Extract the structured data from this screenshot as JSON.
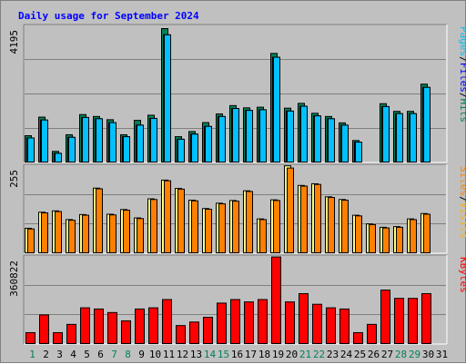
{
  "chart_data": {
    "type": "bar",
    "title": "Daily usage for September 2024",
    "title_color": "#0000ff",
    "x": {
      "labels": [
        "1",
        "2",
        "3",
        "4",
        "5",
        "6",
        "7",
        "8",
        "9",
        "10",
        "11",
        "12",
        "13",
        "14",
        "15",
        "16",
        "17",
        "18",
        "19",
        "20",
        "21",
        "22",
        "23",
        "24",
        "25",
        "26",
        "27",
        "28",
        "29",
        "30",
        "31"
      ],
      "weekend_days": [
        1,
        7,
        8,
        14,
        15,
        21,
        22,
        28,
        29
      ],
      "weekend_label_color": "#00805c",
      "weekday_label_color": "#000000"
    },
    "panels": [
      {
        "id": "hits",
        "ymax_label": "4195",
        "ymax": 4195,
        "right_labels": [
          {
            "text": "Pages",
            "color": "#00c0ff"
          },
          {
            "text": "/",
            "color": "#000000"
          },
          {
            "text": "Files",
            "color": "#0000ff"
          },
          {
            "text": "/",
            "color": "#000000"
          },
          {
            "text": "Hits",
            "color": "#00805c"
          }
        ],
        "series": [
          {
            "name": "Hits",
            "color": "#00805c",
            "values": [
              850,
              1430,
              360,
              880,
              1510,
              1450,
              1350,
              880,
              1330,
              1490,
              4195,
              820,
              980,
              1260,
              1530,
              1790,
              1720,
              1740,
              3420,
              1710,
              1860,
              1550,
              1450,
              1250,
              700,
              0,
              1850,
              1610,
              1610,
              2460,
              0
            ]
          },
          {
            "name": "Files",
            "color": "#0000ff",
            "values": [
              780,
              1340,
              300,
              800,
              1420,
              1380,
              1260,
              820,
              1180,
              1390,
              4000,
              740,
              900,
              1140,
              1450,
              1700,
              1640,
              1660,
              3300,
              1620,
              1770,
              1470,
              1380,
              1180,
              650,
              0,
              1760,
              1540,
              1540,
              2360,
              0
            ]
          },
          {
            "name": "Pages",
            "color": "#00c0ff",
            "values": [
              780,
              1340,
              300,
              800,
              1420,
              1380,
              1260,
              820,
              1180,
              1390,
              4000,
              740,
              900,
              1140,
              1450,
              1700,
              1640,
              1660,
              3300,
              1620,
              1770,
              1470,
              1380,
              1180,
              650,
              0,
              1760,
              1540,
              1540,
              2360,
              0
            ]
          }
        ]
      },
      {
        "id": "visits",
        "ymax_label": "255",
        "ymax": 255,
        "right_labels": [
          {
            "text": "Sites",
            "color": "#ff8000"
          },
          {
            "text": "/",
            "color": "#000000"
          },
          {
            "text": "Visits",
            "color": "#ffb000"
          }
        ],
        "series": [
          {
            "name": "Visits",
            "color": "#ffff80",
            "values": [
              76,
              124,
              128,
              102,
              117,
              196,
              118,
              132,
              107,
              164,
              220,
              195,
              160,
              135,
              151,
              159,
              188,
              104,
              161,
              263,
              204,
              209,
              170,
              162,
              115,
              89,
              79,
              81,
              104,
              120,
              0
            ]
          },
          {
            "name": "Sites",
            "color": "#ff8000",
            "values": [
              74,
              122,
              126,
              100,
              115,
              194,
              116,
              130,
              105,
              162,
              218,
              193,
              158,
              133,
              149,
              157,
              186,
              102,
              159,
              256,
              202,
              207,
              168,
              160,
              113,
              87,
              77,
              79,
              102,
              118,
              0
            ]
          }
        ]
      },
      {
        "id": "kbytes",
        "ymax_label": "360822",
        "ymax": 360822,
        "right_labels": [
          {
            "text": "KBytes",
            "color": "#ff0000"
          }
        ],
        "series": [
          {
            "name": "KBytes",
            "color": "#ff0000",
            "values": [
              50000,
              125000,
              50000,
              85000,
              155000,
              150000,
              135000,
              100000,
              150000,
              155000,
              190000,
              80000,
              95000,
              115000,
              175000,
              190000,
              180000,
              190000,
              370000,
              180000,
              215000,
              170000,
              155000,
              150000,
              50000,
              85000,
              230000,
              195000,
              195000,
              215000,
              0
            ]
          }
        ]
      }
    ]
  }
}
